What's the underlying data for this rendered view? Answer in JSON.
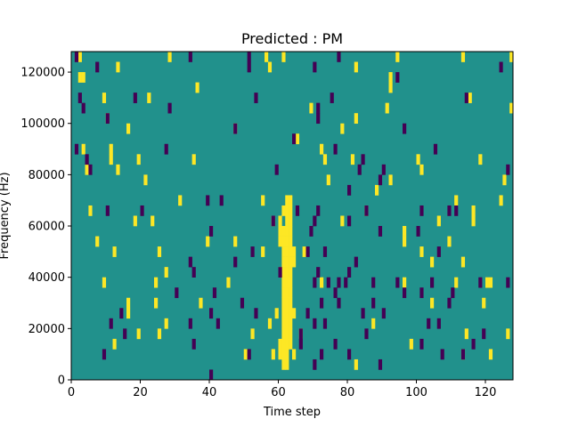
{
  "chart_data": {
    "type": "heatmap",
    "title": "Predicted : PM",
    "xlabel": "Time step",
    "ylabel": "Frequency (Hz)",
    "xlim": [
      0,
      128
    ],
    "ylim": [
      0,
      128000
    ],
    "xticks": [
      0,
      20,
      40,
      60,
      80,
      100,
      120
    ],
    "yticks": [
      0,
      20000,
      40000,
      60000,
      80000,
      100000,
      120000
    ],
    "xtick_labels": [
      "0",
      "20",
      "40",
      "60",
      "80",
      "100",
      "120"
    ],
    "ytick_labels": [
      "0",
      "20000",
      "40000",
      "60000",
      "80000",
      "100000",
      "120000"
    ],
    "n_time_steps": 128,
    "n_freq_bins": 32,
    "freq_bin_hz": 4000,
    "colors": {
      "background": "#21918c",
      "low": "#440154",
      "high": "#fde725"
    },
    "cells": [
      {
        "t": 60,
        "f": 2,
        "v": 1
      },
      {
        "t": 61,
        "f": 1,
        "v": 1
      },
      {
        "t": 62,
        "f": 1,
        "v": 1
      },
      {
        "t": 60,
        "f": 3,
        "v": 1
      },
      {
        "t": 61,
        "f": 2,
        "v": 1
      },
      {
        "t": 61,
        "f": 3,
        "v": 1
      },
      {
        "t": 61,
        "f": 4,
        "v": 1
      },
      {
        "t": 61,
        "f": 5,
        "v": 1
      },
      {
        "t": 61,
        "f": 6,
        "v": 1
      },
      {
        "t": 61,
        "f": 7,
        "v": 1
      },
      {
        "t": 61,
        "f": 8,
        "v": 1
      },
      {
        "t": 61,
        "f": 9,
        "v": 1
      },
      {
        "t": 61,
        "f": 10,
        "v": 1
      },
      {
        "t": 61,
        "f": 11,
        "v": 1
      },
      {
        "t": 61,
        "f": 12,
        "v": 1
      },
      {
        "t": 61,
        "f": 13,
        "v": 1
      },
      {
        "t": 61,
        "f": 14,
        "v": 1
      },
      {
        "t": 62,
        "f": 2,
        "v": 1
      },
      {
        "t": 62,
        "f": 3,
        "v": 1
      },
      {
        "t": 62,
        "f": 4,
        "v": 1
      },
      {
        "t": 62,
        "f": 5,
        "v": 1
      },
      {
        "t": 62,
        "f": 6,
        "v": 1
      },
      {
        "t": 62,
        "f": 7,
        "v": 1
      },
      {
        "t": 62,
        "f": 8,
        "v": 1
      },
      {
        "t": 62,
        "f": 9,
        "v": 1
      },
      {
        "t": 62,
        "f": 10,
        "v": 1
      },
      {
        "t": 62,
        "f": 11,
        "v": 1
      },
      {
        "t": 62,
        "f": 12,
        "v": 1
      },
      {
        "t": 62,
        "f": 13,
        "v": 1
      },
      {
        "t": 62,
        "f": 14,
        "v": 1
      },
      {
        "t": 62,
        "f": 15,
        "v": 1
      },
      {
        "t": 62,
        "f": 16,
        "v": 1
      },
      {
        "t": 63,
        "f": 3,
        "v": 1
      },
      {
        "t": 63,
        "f": 4,
        "v": 1
      },
      {
        "t": 63,
        "f": 5,
        "v": 1
      },
      {
        "t": 63,
        "f": 6,
        "v": 1
      },
      {
        "t": 63,
        "f": 7,
        "v": 1
      },
      {
        "t": 63,
        "f": 8,
        "v": 1
      },
      {
        "t": 63,
        "f": 9,
        "v": 1
      },
      {
        "t": 63,
        "f": 10,
        "v": 1
      },
      {
        "t": 63,
        "f": 11,
        "v": 1
      },
      {
        "t": 63,
        "f": 12,
        "v": 1
      },
      {
        "t": 63,
        "f": 13,
        "v": 1
      },
      {
        "t": 63,
        "f": 14,
        "v": 1
      },
      {
        "t": 63,
        "f": 15,
        "v": 1
      },
      {
        "t": 63,
        "f": 16,
        "v": 1
      },
      {
        "t": 60,
        "f": 13,
        "v": 1
      },
      {
        "t": 60,
        "f": 14,
        "v": 1
      },
      {
        "t": 60,
        "f": 15,
        "v": 1
      },
      {
        "t": 62,
        "f": 17,
        "v": 1
      },
      {
        "t": 61,
        "f": 16,
        "v": 1
      },
      {
        "t": 58,
        "f": 15,
        "v": 1
      },
      {
        "t": 60,
        "f": 10,
        "v": 1
      },
      {
        "t": 64,
        "f": 11,
        "v": 1
      },
      {
        "t": 64,
        "f": 12,
        "v": 1
      },
      {
        "t": 59,
        "f": 6,
        "v": 1
      },
      {
        "t": 64,
        "f": 6,
        "v": 1
      },
      {
        "t": 58,
        "f": 2,
        "v": 1
      },
      {
        "t": 64,
        "f": 2,
        "v": 1
      },
      {
        "t": 2,
        "f": 29,
        "v": 1
      },
      {
        "t": 3,
        "f": 29,
        "v": 1
      },
      {
        "t": 2,
        "f": 31,
        "v": 1
      },
      {
        "t": 13,
        "f": 30,
        "v": 1
      },
      {
        "t": 28,
        "f": 31,
        "v": 1
      },
      {
        "t": 56,
        "f": 31,
        "v": 1
      },
      {
        "t": 57,
        "f": 30,
        "v": 1
      },
      {
        "t": 61,
        "f": 31,
        "v": 1
      },
      {
        "t": 82,
        "f": 30,
        "v": 1
      },
      {
        "t": 92,
        "f": 29,
        "v": 1
      },
      {
        "t": 94,
        "f": 31,
        "v": 1
      },
      {
        "t": 113,
        "f": 31,
        "v": 1
      },
      {
        "t": 127,
        "f": 31,
        "v": 1
      },
      {
        "t": 9,
        "f": 27,
        "v": 1
      },
      {
        "t": 22,
        "f": 27,
        "v": 1
      },
      {
        "t": 36,
        "f": 28,
        "v": 1
      },
      {
        "t": 92,
        "f": 28,
        "v": 1
      },
      {
        "t": 115,
        "f": 27,
        "v": 1
      },
      {
        "t": 91,
        "f": 26,
        "v": 1
      },
      {
        "t": 127,
        "f": 26,
        "v": 1
      },
      {
        "t": 10,
        "f": 25,
        "v": 1
      },
      {
        "t": 69,
        "f": 26,
        "v": 1
      },
      {
        "t": 82,
        "f": 25,
        "v": 1
      },
      {
        "t": 11,
        "f": 22,
        "v": 1
      },
      {
        "t": 11,
        "f": 21,
        "v": 1
      },
      {
        "t": 16,
        "f": 24,
        "v": 1
      },
      {
        "t": 47,
        "f": 24,
        "v": 1
      },
      {
        "t": 65,
        "f": 23,
        "v": 1
      },
      {
        "t": 78,
        "f": 24,
        "v": 1
      },
      {
        "t": 72,
        "f": 22,
        "v": 1
      },
      {
        "t": 3,
        "f": 22,
        "v": 1
      },
      {
        "t": 19,
        "f": 21,
        "v": 1
      },
      {
        "t": 35,
        "f": 21,
        "v": 1
      },
      {
        "t": 73,
        "f": 21,
        "v": 1
      },
      {
        "t": 81,
        "f": 21,
        "v": 1
      },
      {
        "t": 100,
        "f": 21,
        "v": 1
      },
      {
        "t": 118,
        "f": 21,
        "v": 1
      },
      {
        "t": 4,
        "f": 20,
        "v": 1
      },
      {
        "t": 13,
        "f": 20,
        "v": 1
      },
      {
        "t": 101,
        "f": 20,
        "v": 1
      },
      {
        "t": 21,
        "f": 19,
        "v": 1
      },
      {
        "t": 74,
        "f": 19,
        "v": 1
      },
      {
        "t": 92,
        "f": 19,
        "v": 1
      },
      {
        "t": 125,
        "f": 19,
        "v": 1
      },
      {
        "t": 31,
        "f": 17,
        "v": 1
      },
      {
        "t": 55,
        "f": 17,
        "v": 1
      },
      {
        "t": 88,
        "f": 18,
        "v": 1
      },
      {
        "t": 111,
        "f": 17,
        "v": 1
      },
      {
        "t": 116,
        "f": 16,
        "v": 1
      },
      {
        "t": 124,
        "f": 17,
        "v": 1
      },
      {
        "t": 5,
        "f": 16,
        "v": 1
      },
      {
        "t": 18,
        "f": 15,
        "v": 1
      },
      {
        "t": 23,
        "f": 15,
        "v": 1
      },
      {
        "t": 63,
        "f": 17,
        "v": 1
      },
      {
        "t": 78,
        "f": 15,
        "v": 1
      },
      {
        "t": 85,
        "f": 16,
        "v": 1
      },
      {
        "t": 96,
        "f": 14,
        "v": 1
      },
      {
        "t": 106,
        "f": 15,
        "v": 1
      },
      {
        "t": 116,
        "f": 15,
        "v": 1
      },
      {
        "t": 7,
        "f": 13,
        "v": 1
      },
      {
        "t": 39,
        "f": 13,
        "v": 1
      },
      {
        "t": 47,
        "f": 13,
        "v": 1
      },
      {
        "t": 67,
        "f": 12,
        "v": 1
      },
      {
        "t": 96,
        "f": 13,
        "v": 1
      },
      {
        "t": 109,
        "f": 13,
        "v": 1
      },
      {
        "t": 12,
        "f": 12,
        "v": 1
      },
      {
        "t": 25,
        "f": 12,
        "v": 1
      },
      {
        "t": 55,
        "f": 12,
        "v": 1
      },
      {
        "t": 101,
        "f": 12,
        "v": 1
      },
      {
        "t": 104,
        "f": 11,
        "v": 1
      },
      {
        "t": 113,
        "f": 11,
        "v": 1
      },
      {
        "t": 9,
        "f": 9,
        "v": 1
      },
      {
        "t": 24,
        "f": 9,
        "v": 1
      },
      {
        "t": 27,
        "f": 10,
        "v": 1
      },
      {
        "t": 45,
        "f": 9,
        "v": 1
      },
      {
        "t": 62,
        "f": 9,
        "v": 1
      },
      {
        "t": 72,
        "f": 9,
        "v": 1
      },
      {
        "t": 96,
        "f": 9,
        "v": 1
      },
      {
        "t": 111,
        "f": 9,
        "v": 1
      },
      {
        "t": 120,
        "f": 9,
        "v": 1
      },
      {
        "t": 121,
        "f": 9,
        "v": 1
      },
      {
        "t": 16,
        "f": 7,
        "v": 1
      },
      {
        "t": 24,
        "f": 7,
        "v": 1
      },
      {
        "t": 37,
        "f": 7,
        "v": 1
      },
      {
        "t": 104,
        "f": 7,
        "v": 1
      },
      {
        "t": 119,
        "f": 7,
        "v": 1
      },
      {
        "t": 16,
        "f": 6,
        "v": 1
      },
      {
        "t": 27,
        "f": 5,
        "v": 1
      },
      {
        "t": 57,
        "f": 5,
        "v": 1
      },
      {
        "t": 87,
        "f": 5,
        "v": 1
      },
      {
        "t": 114,
        "f": 4,
        "v": 1
      },
      {
        "t": 19,
        "f": 4,
        "v": 1
      },
      {
        "t": 25,
        "f": 4,
        "v": 1
      },
      {
        "t": 52,
        "f": 4,
        "v": 1
      },
      {
        "t": 66,
        "f": 4,
        "v": 1
      },
      {
        "t": 98,
        "f": 3,
        "v": 1
      },
      {
        "t": 113,
        "f": 2,
        "v": 1
      },
      {
        "t": 121,
        "f": 2,
        "v": 1
      },
      {
        "t": 12,
        "f": 3,
        "v": 1
      },
      {
        "t": 50,
        "f": 2,
        "v": 1
      },
      {
        "t": 82,
        "f": 1,
        "v": 1
      },
      {
        "t": 126,
        "f": 4,
        "v": 1
      },
      {
        "t": 1,
        "f": 31,
        "v": -1
      },
      {
        "t": 7,
        "f": 30,
        "v": -1
      },
      {
        "t": 34,
        "f": 31,
        "v": -1
      },
      {
        "t": 51,
        "f": 31,
        "v": -1
      },
      {
        "t": 51,
        "f": 30,
        "v": -1
      },
      {
        "t": 70,
        "f": 30,
        "v": -1
      },
      {
        "t": 77,
        "f": 31,
        "v": -1
      },
      {
        "t": 94,
        "f": 29,
        "v": -1
      },
      {
        "t": 124,
        "f": 30,
        "v": -1
      },
      {
        "t": 2,
        "f": 27,
        "v": -1
      },
      {
        "t": 18,
        "f": 27,
        "v": -1
      },
      {
        "t": 53,
        "f": 27,
        "v": -1
      },
      {
        "t": 75,
        "f": 27,
        "v": -1
      },
      {
        "t": 114,
        "f": 27,
        "v": -1
      },
      {
        "t": 3,
        "f": 26,
        "v": -1
      },
      {
        "t": 28,
        "f": 26,
        "v": -1
      },
      {
        "t": 71,
        "f": 26,
        "v": -1
      },
      {
        "t": 10,
        "f": 25,
        "v": -1
      },
      {
        "t": 71,
        "f": 25,
        "v": -1
      },
      {
        "t": 47,
        "f": 24,
        "v": -1
      },
      {
        "t": 64,
        "f": 23,
        "v": -1
      },
      {
        "t": 96,
        "f": 24,
        "v": -1
      },
      {
        "t": 1,
        "f": 22,
        "v": -1
      },
      {
        "t": 27,
        "f": 22,
        "v": -1
      },
      {
        "t": 76,
        "f": 22,
        "v": -1
      },
      {
        "t": 105,
        "f": 22,
        "v": -1
      },
      {
        "t": 4,
        "f": 21,
        "v": -1
      },
      {
        "t": 84,
        "f": 21,
        "v": -1
      },
      {
        "t": 90,
        "f": 20,
        "v": -1
      },
      {
        "t": 5,
        "f": 20,
        "v": -1
      },
      {
        "t": 59,
        "f": 20,
        "v": -1
      },
      {
        "t": 83,
        "f": 20,
        "v": -1
      },
      {
        "t": 126,
        "f": 20,
        "v": -1
      },
      {
        "t": 89,
        "f": 19,
        "v": -1
      },
      {
        "t": 80,
        "f": 18,
        "v": -1
      },
      {
        "t": 39,
        "f": 17,
        "v": -1
      },
      {
        "t": 43,
        "f": 17,
        "v": -1
      },
      {
        "t": 10,
        "f": 16,
        "v": -1
      },
      {
        "t": 20,
        "f": 16,
        "v": -1
      },
      {
        "t": 71,
        "f": 16,
        "v": -1
      },
      {
        "t": 65,
        "f": 16,
        "v": -1
      },
      {
        "t": 85,
        "f": 16,
        "v": -1
      },
      {
        "t": 101,
        "f": 16,
        "v": -1
      },
      {
        "t": 109,
        "f": 16,
        "v": -1
      },
      {
        "t": 70,
        "f": 15,
        "v": -1
      },
      {
        "t": 111,
        "f": 16,
        "v": -1
      },
      {
        "t": 40,
        "f": 14,
        "v": -1
      },
      {
        "t": 58,
        "f": 15,
        "v": -1
      },
      {
        "t": 69,
        "f": 14,
        "v": -1
      },
      {
        "t": 89,
        "f": 14,
        "v": -1
      },
      {
        "t": 80,
        "f": 15,
        "v": -1
      },
      {
        "t": 100,
        "f": 14,
        "v": -1
      },
      {
        "t": 68,
        "f": 12,
        "v": -1
      },
      {
        "t": 52,
        "f": 12,
        "v": -1
      },
      {
        "t": 106,
        "f": 12,
        "v": -1
      },
      {
        "t": 73,
        "f": 12,
        "v": -1
      },
      {
        "t": 82,
        "f": 11,
        "v": -1
      },
      {
        "t": 34,
        "f": 11,
        "v": -1
      },
      {
        "t": 47,
        "f": 11,
        "v": -1
      },
      {
        "t": 80,
        "f": 10,
        "v": -1
      },
      {
        "t": 35,
        "f": 10,
        "v": -1
      },
      {
        "t": 60,
        "f": 10,
        "v": -1
      },
      {
        "t": 71,
        "f": 10,
        "v": -1
      },
      {
        "t": 79,
        "f": 9,
        "v": -1
      },
      {
        "t": 94,
        "f": 9,
        "v": -1
      },
      {
        "t": 70,
        "f": 9,
        "v": -1
      },
      {
        "t": 74,
        "f": 9,
        "v": -1
      },
      {
        "t": 77,
        "f": 9,
        "v": -1
      },
      {
        "t": 87,
        "f": 9,
        "v": -1
      },
      {
        "t": 104,
        "f": 9,
        "v": -1
      },
      {
        "t": 118,
        "f": 9,
        "v": -1
      },
      {
        "t": 126,
        "f": 9,
        "v": -1
      },
      {
        "t": 30,
        "f": 8,
        "v": -1
      },
      {
        "t": 41,
        "f": 8,
        "v": -1
      },
      {
        "t": 96,
        "f": 8,
        "v": -1
      },
      {
        "t": 101,
        "f": 8,
        "v": -1
      },
      {
        "t": 76,
        "f": 8,
        "v": -1
      },
      {
        "t": 110,
        "f": 8,
        "v": -1
      },
      {
        "t": 72,
        "f": 7,
        "v": -1
      },
      {
        "t": 77,
        "f": 7,
        "v": -1
      },
      {
        "t": 49,
        "f": 7,
        "v": -1
      },
      {
        "t": 87,
        "f": 7,
        "v": -1
      },
      {
        "t": 109,
        "f": 7,
        "v": -1
      },
      {
        "t": 90,
        "f": 6,
        "v": -1
      },
      {
        "t": 84,
        "f": 6,
        "v": -1
      },
      {
        "t": 68,
        "f": 6,
        "v": -1
      },
      {
        "t": 14,
        "f": 6,
        "v": -1
      },
      {
        "t": 40,
        "f": 6,
        "v": -1
      },
      {
        "t": 53,
        "f": 6,
        "v": -1
      },
      {
        "t": 73,
        "f": 5,
        "v": -1
      },
      {
        "t": 70,
        "f": 5,
        "v": -1
      },
      {
        "t": 103,
        "f": 5,
        "v": -1
      },
      {
        "t": 106,
        "f": 5,
        "v": -1
      },
      {
        "t": 11,
        "f": 5,
        "v": -1
      },
      {
        "t": 34,
        "f": 5,
        "v": -1
      },
      {
        "t": 42,
        "f": 5,
        "v": -1
      },
      {
        "t": 85,
        "f": 4,
        "v": -1
      },
      {
        "t": 66,
        "f": 4,
        "v": -1
      },
      {
        "t": 15,
        "f": 4,
        "v": -1
      },
      {
        "t": 119,
        "f": 4,
        "v": -1
      },
      {
        "t": 35,
        "f": 3,
        "v": -1
      },
      {
        "t": 66,
        "f": 3,
        "v": -1
      },
      {
        "t": 76,
        "f": 3,
        "v": -1
      },
      {
        "t": 101,
        "f": 3,
        "v": -1
      },
      {
        "t": 116,
        "f": 3,
        "v": -1
      },
      {
        "t": 9,
        "f": 2,
        "v": -1
      },
      {
        "t": 51,
        "f": 2,
        "v": -1
      },
      {
        "t": 72,
        "f": 2,
        "v": -1
      },
      {
        "t": 80,
        "f": 2,
        "v": -1
      },
      {
        "t": 107,
        "f": 2,
        "v": -1
      },
      {
        "t": 113,
        "f": 2,
        "v": -1
      },
      {
        "t": 70,
        "f": 1,
        "v": -1
      },
      {
        "t": 89,
        "f": 1,
        "v": -1
      },
      {
        "t": 40,
        "f": 0,
        "v": -1
      }
    ]
  }
}
